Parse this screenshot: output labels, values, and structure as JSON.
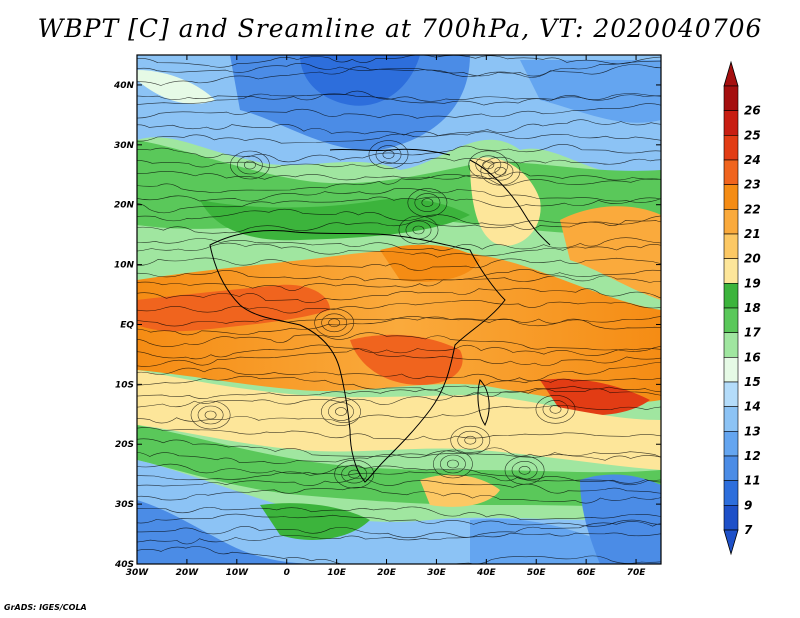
{
  "title": "WBPT [C] and Sreamline at 700hPa, VT: 2020040706",
  "footer": "GrADS: IGES/COLA",
  "map": {
    "lon_range": [
      -30,
      75
    ],
    "lat_range": [
      -40,
      45
    ],
    "x_ticks": [
      {
        "value": -30,
        "label": "30W"
      },
      {
        "value": -20,
        "label": "20W"
      },
      {
        "value": -10,
        "label": "10W"
      },
      {
        "value": 0,
        "label": "0"
      },
      {
        "value": 10,
        "label": "10E"
      },
      {
        "value": 20,
        "label": "20E"
      },
      {
        "value": 30,
        "label": "30E"
      },
      {
        "value": 40,
        "label": "40E"
      },
      {
        "value": 50,
        "label": "50E"
      },
      {
        "value": 60,
        "label": "60E"
      },
      {
        "value": 70,
        "label": "70E"
      }
    ],
    "y_ticks": [
      {
        "value": 40,
        "label": "40N"
      },
      {
        "value": 30,
        "label": "30N"
      },
      {
        "value": 20,
        "label": "20N"
      },
      {
        "value": 10,
        "label": "10N"
      },
      {
        "value": 0,
        "label": "EQ"
      },
      {
        "value": -10,
        "label": "10S"
      },
      {
        "value": -20,
        "label": "20S"
      },
      {
        "value": -30,
        "label": "30S"
      },
      {
        "value": -40,
        "label": "40S"
      }
    ]
  },
  "colorbar": {
    "levels": [
      {
        "label": "26",
        "color": "#a50f0f"
      },
      {
        "label": "25",
        "color": "#c81e12"
      },
      {
        "label": "24",
        "color": "#e23c14"
      },
      {
        "label": "23",
        "color": "#f0641e"
      },
      {
        "label": "22",
        "color": "#f58c14"
      },
      {
        "label": "21",
        "color": "#faaa3c"
      },
      {
        "label": "20",
        "color": "#fcc864"
      },
      {
        "label": "19",
        "color": "#fde69a"
      },
      {
        "label": "18",
        "color": "#3cb43c"
      },
      {
        "label": "17",
        "color": "#5ac85a"
      },
      {
        "label": "16",
        "color": "#a0e6a0"
      },
      {
        "label": "15",
        "color": "#e6fae6"
      },
      {
        "label": "14",
        "color": "#b4dcfa"
      },
      {
        "label": "13",
        "color": "#8cc3f5"
      },
      {
        "label": "12",
        "color": "#64a5f0"
      },
      {
        "label": "11",
        "color": "#4b8ce6"
      },
      {
        "label": "9",
        "color": "#2d6edc"
      },
      {
        "label": "7",
        "color": "#1e50c8"
      }
    ],
    "top_arrow_color": "#a50f0f",
    "bottom_arrow_color": "#1e50c8"
  }
}
